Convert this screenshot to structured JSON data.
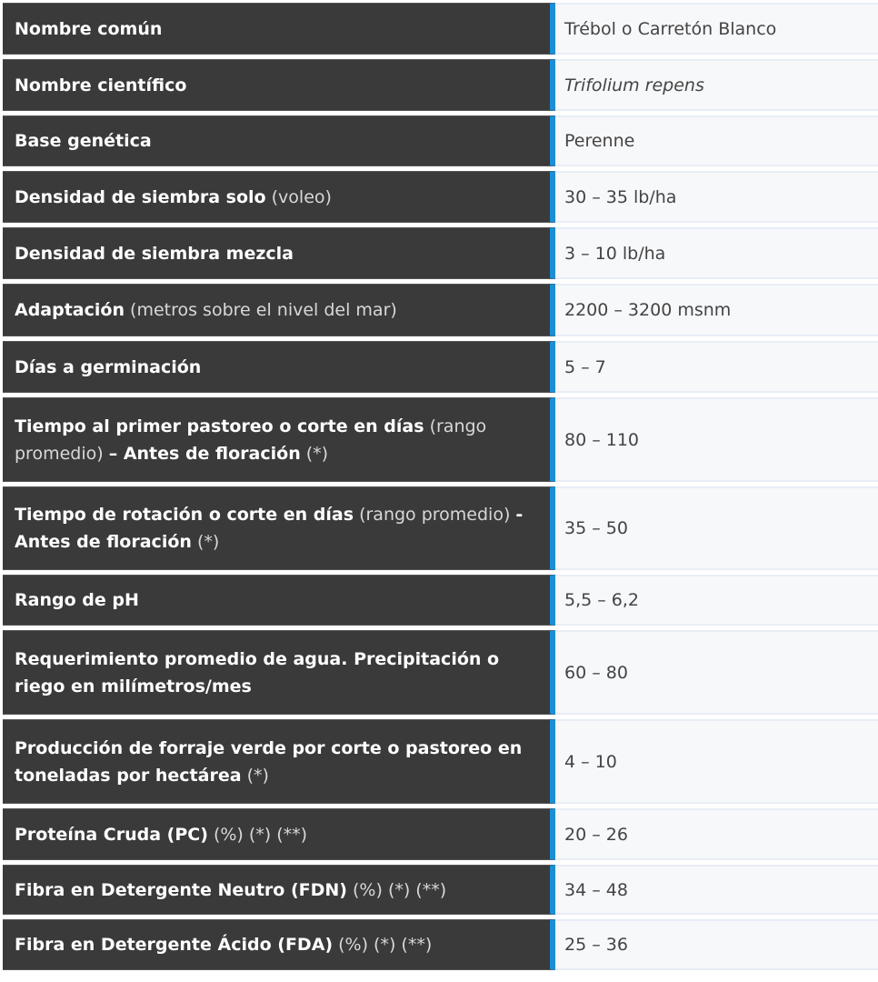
{
  "accent_color": "#1b8fd6",
  "rows": [
    {
      "label": [
        {
          "t": "Nombre común",
          "b": true
        }
      ],
      "value": "Trébol o Carretón Blanco"
    },
    {
      "label": [
        {
          "t": "Nombre científico",
          "b": true
        }
      ],
      "value": "Trifolium repens",
      "italic": true
    },
    {
      "label": [
        {
          "t": "Base genética",
          "b": true
        }
      ],
      "value": "Perenne"
    },
    {
      "label": [
        {
          "t": "Densidad de siembra solo",
          "b": true
        },
        {
          "t": " (voleo)",
          "b": false
        }
      ],
      "value": "30 – 35 lb/ha"
    },
    {
      "label": [
        {
          "t": "Densidad de siembra mezcla",
          "b": true
        }
      ],
      "value": "3 – 10 lb/ha"
    },
    {
      "label": [
        {
          "t": "Adaptación",
          "b": true
        },
        {
          "t": " (metros sobre el nivel del mar)",
          "b": false
        }
      ],
      "value": "2200 – 3200 msnm"
    },
    {
      "label": [
        {
          "t": "Días a germinación",
          "b": true
        }
      ],
      "value": "5 – 7"
    },
    {
      "label": [
        {
          "t": "Tiempo al primer pastoreo o corte en días",
          "b": true
        },
        {
          "t": " (rango promedio) ",
          "b": false
        },
        {
          "t": "– Antes de floración",
          "b": true
        },
        {
          "t": " (*)",
          "b": false
        }
      ],
      "value": "80 – 110",
      "tall": true
    },
    {
      "label": [
        {
          "t": "Tiempo de rotación o corte en días",
          "b": true
        },
        {
          "t": " (rango promedio) ",
          "b": false
        },
        {
          "t": "- Antes de floración",
          "b": true
        },
        {
          "t": " (*)",
          "b": false
        }
      ],
      "value": "35 – 50",
      "tall": true
    },
    {
      "label": [
        {
          "t": "Rango de pH",
          "b": true
        }
      ],
      "value": "5,5 – 6,2"
    },
    {
      "label": [
        {
          "t": "Requerimiento promedio de agua. Precipitación o riego en milímetros/mes",
          "b": true
        }
      ],
      "value": "60 – 80",
      "tall": true
    },
    {
      "label": [
        {
          "t": "Producción de forraje verde por corte o pastoreo en toneladas por hectárea",
          "b": true
        },
        {
          "t": " (*)",
          "b": false
        }
      ],
      "value": "4 – 10",
      "tall": true
    },
    {
      "label": [
        {
          "t": "Proteína Cruda (PC)",
          "b": true
        },
        {
          "t": " (%) (*) (**)",
          "b": false
        }
      ],
      "value": "20 – 26"
    },
    {
      "label": [
        {
          "t": "Fibra en Detergente Neutro (FDN)",
          "b": true
        },
        {
          "t": " (%) (*) (**)",
          "b": false
        }
      ],
      "value": "34 – 48"
    },
    {
      "label": [
        {
          "t": "Fibra en Detergente Ácido (FDA)",
          "b": true
        },
        {
          "t": " (%) (*) (**)",
          "b": false
        }
      ],
      "value": "25 – 36"
    }
  ]
}
